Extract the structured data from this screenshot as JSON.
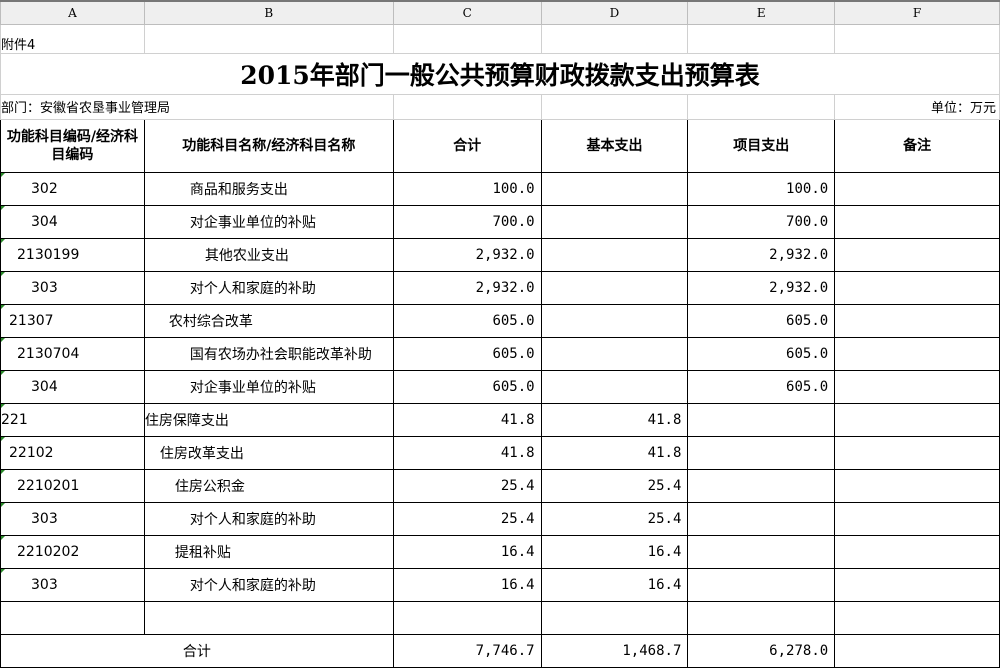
{
  "columns": [
    "A",
    "B",
    "C",
    "D",
    "E",
    "F"
  ],
  "attachment": "附件4",
  "title": "2015年部门一般公共预算财政拨款支出预算表",
  "department": "部门：安徽省农垦事业管理局",
  "unit": "单位：万元",
  "headers": [
    "功能科目编码/经济科目编码",
    "功能科目名称/经济科目名称",
    "合计",
    "基本支出",
    "项目支出",
    "备注"
  ],
  "rows": [
    {
      "code": "302",
      "name": "商品和服务支出",
      "total": "100.0",
      "basic": "",
      "project": "100.0",
      "ci": 30,
      "ni": 45
    },
    {
      "code": "304",
      "name": "对企事业单位的补贴",
      "total": "700.0",
      "basic": "",
      "project": "700.0",
      "ci": 30,
      "ni": 45
    },
    {
      "code": "2130199",
      "name": "其他农业支出",
      "total": "2,932.0",
      "basic": "",
      "project": "2,932.0",
      "ci": 16,
      "ni": 60
    },
    {
      "code": "303",
      "name": "对个人和家庭的补助",
      "total": "2,932.0",
      "basic": "",
      "project": "2,932.0",
      "ci": 30,
      "ni": 45
    },
    {
      "code": "21307",
      "name": "农村综合改革",
      "total": "605.0",
      "basic": "",
      "project": "605.0",
      "ci": 8,
      "ni": 24
    },
    {
      "code": "2130704",
      "name": "国有农场办社会职能改革补助",
      "total": "605.0",
      "basic": "",
      "project": "605.0",
      "ci": 16,
      "ni": 45
    },
    {
      "code": "304",
      "name": "对企事业单位的补贴",
      "total": "605.0",
      "basic": "",
      "project": "605.0",
      "ci": 30,
      "ni": 45
    },
    {
      "code": "221",
      "name": "住房保障支出",
      "total": "41.8",
      "basic": "41.8",
      "project": "",
      "ci": 0,
      "ni": 0
    },
    {
      "code": "22102",
      "name": "住房改革支出",
      "total": "41.8",
      "basic": "41.8",
      "project": "",
      "ci": 8,
      "ni": 15
    },
    {
      "code": "2210201",
      "name": "住房公积金",
      "total": "25.4",
      "basic": "25.4",
      "project": "",
      "ci": 16,
      "ni": 30
    },
    {
      "code": "303",
      "name": "对个人和家庭的补助",
      "total": "25.4",
      "basic": "25.4",
      "project": "",
      "ci": 30,
      "ni": 45
    },
    {
      "code": "2210202",
      "name": "提租补贴",
      "total": "16.4",
      "basic": "16.4",
      "project": "",
      "ci": 16,
      "ni": 30
    },
    {
      "code": "303",
      "name": "对个人和家庭的补助",
      "total": "16.4",
      "basic": "16.4",
      "project": "",
      "ci": 30,
      "ni": 45
    }
  ],
  "total_row": {
    "label": "合计",
    "total": "7,746.7",
    "basic": "1,468.7",
    "project": "6,278.0"
  }
}
